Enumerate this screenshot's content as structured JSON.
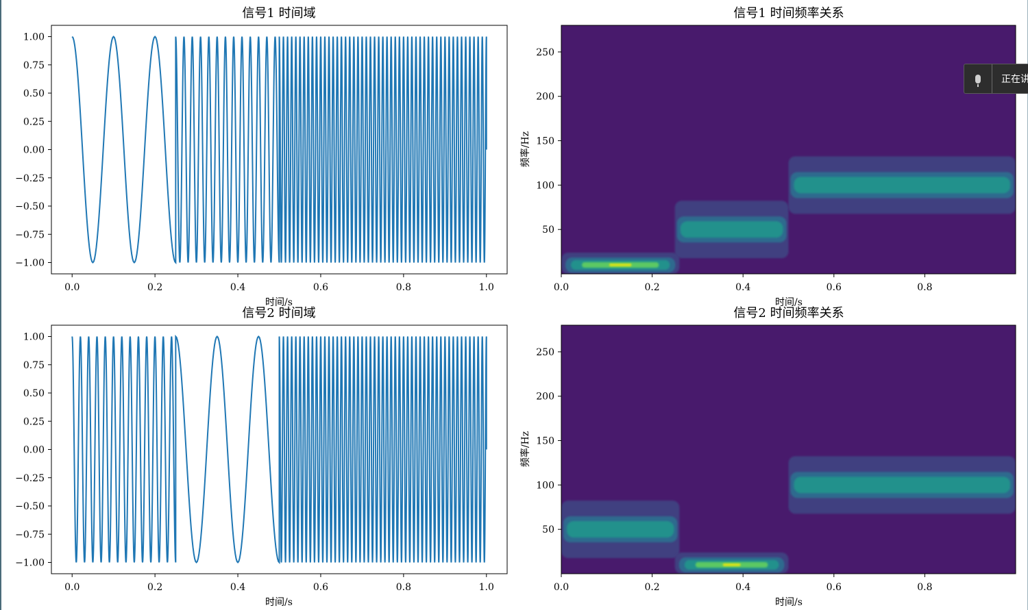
{
  "chart_data": [
    {
      "type": "line",
      "title": "信号1 时间域",
      "xlabel": "时间/s",
      "ylabel": "",
      "xlim": [
        -0.05,
        1.05
      ],
      "ylim": [
        -1.1,
        1.1
      ],
      "xticks": [
        0.0,
        0.2,
        0.4,
        0.6,
        0.8,
        1.0
      ],
      "xtick_labels": [
        "0.0",
        "0.2",
        "0.4",
        "0.6",
        "0.8",
        "1.0"
      ],
      "yticks": [
        1.0,
        0.75,
        0.5,
        0.25,
        0.0,
        -0.25,
        -0.5,
        -0.75,
        -1.0
      ],
      "ytick_labels": [
        "1.00",
        "0.75",
        "0.50",
        "0.25",
        "0.00",
        "−0.25",
        "−0.50",
        "−0.75",
        "−1.00"
      ],
      "series": [
        {
          "color": "#1f77b4",
          "segments": [
            {
              "t_start": 0.0,
              "t_end": 0.25,
              "freq_hz": 10
            },
            {
              "t_start": 0.25,
              "t_end": 0.5,
              "freq_hz": 50
            },
            {
              "t_start": 0.5,
              "t_end": 1.0,
              "freq_hz": 100
            }
          ]
        }
      ]
    },
    {
      "type": "heatmap",
      "title": "信号1 时间频率关系",
      "xlabel": "时间/s",
      "ylabel": "频率/Hz",
      "xlim": [
        0.0,
        1.0
      ],
      "ylim": [
        0,
        280
      ],
      "xticks": [
        0.0,
        0.2,
        0.4,
        0.6,
        0.8
      ],
      "xtick_labels": [
        "0.0",
        "0.2",
        "0.4",
        "0.6",
        "0.8"
      ],
      "yticks": [
        50,
        100,
        150,
        200,
        250
      ],
      "ytick_labels": [
        "50",
        "100",
        "150",
        "200",
        "250"
      ],
      "colormap": "viridis",
      "bands": [
        {
          "t_start": 0.0,
          "t_end": 0.26,
          "freq_hz": 10
        },
        {
          "t_start": 0.25,
          "t_end": 0.5,
          "freq_hz": 50
        },
        {
          "t_start": 0.5,
          "t_end": 1.0,
          "freq_hz": 100
        }
      ]
    },
    {
      "type": "line",
      "title": "信号2 时间域",
      "xlabel": "时间/s",
      "ylabel": "",
      "xlim": [
        -0.05,
        1.05
      ],
      "ylim": [
        -1.1,
        1.1
      ],
      "xticks": [
        0.0,
        0.2,
        0.4,
        0.6,
        0.8,
        1.0
      ],
      "xtick_labels": [
        "0.0",
        "0.2",
        "0.4",
        "0.6",
        "0.8",
        "1.0"
      ],
      "yticks": [
        1.0,
        0.75,
        0.5,
        0.25,
        0.0,
        -0.25,
        -0.5,
        -0.75,
        -1.0
      ],
      "ytick_labels": [
        "1.00",
        "0.75",
        "0.50",
        "0.25",
        "0.00",
        "−0.25",
        "−0.50",
        "−0.75",
        "−1.00"
      ],
      "series": [
        {
          "color": "#1f77b4",
          "segments": [
            {
              "t_start": 0.0,
              "t_end": 0.25,
              "freq_hz": 50
            },
            {
              "t_start": 0.25,
              "t_end": 0.5,
              "freq_hz": 10
            },
            {
              "t_start": 0.5,
              "t_end": 1.0,
              "freq_hz": 100
            }
          ]
        }
      ]
    },
    {
      "type": "heatmap",
      "title": "信号2 时间频率关系",
      "xlabel": "时间/s",
      "ylabel": "频率/Hz",
      "xlim": [
        0.0,
        1.0
      ],
      "ylim": [
        0,
        280
      ],
      "xticks": [
        0.0,
        0.2,
        0.4,
        0.6,
        0.8
      ],
      "xtick_labels": [
        "0.0",
        "0.2",
        "0.4",
        "0.6",
        "0.8"
      ],
      "yticks": [
        50,
        100,
        150,
        200,
        250
      ],
      "ytick_labels": [
        "50",
        "100",
        "150",
        "200",
        "250"
      ],
      "colormap": "viridis",
      "bands": [
        {
          "t_start": 0.0,
          "t_end": 0.26,
          "freq_hz": 50
        },
        {
          "t_start": 0.25,
          "t_end": 0.5,
          "freq_hz": 10
        },
        {
          "t_start": 0.5,
          "t_end": 1.0,
          "freq_hz": 100
        }
      ]
    }
  ],
  "overlay": {
    "label": "正在讲",
    "icon": "microphone-icon"
  },
  "colors": {
    "line": "#1f77b4",
    "viridis_bg": "#481a6c",
    "viridis_l1": "#413f80",
    "viridis_l2": "#2f6b8e",
    "viridis_l3": "#21918c",
    "viridis_l4": "#5cc863",
    "viridis_peak": "#dde318"
  }
}
